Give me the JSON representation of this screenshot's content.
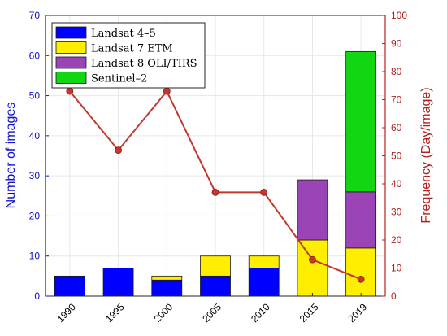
{
  "chart_data": {
    "type": "bar",
    "categories": [
      "1990",
      "1995",
      "2000",
      "2005",
      "2010",
      "2015",
      "2019"
    ],
    "series": [
      {
        "name": "Landsat 4–5",
        "values": [
          5,
          7,
          4,
          5,
          7,
          0,
          0
        ]
      },
      {
        "name": "Landsat 7 ETM",
        "values": [
          0,
          0,
          1,
          5,
          3,
          14,
          12
        ]
      },
      {
        "name": "Landsat 8 OLI/TIRS",
        "values": [
          0,
          0,
          0,
          0,
          0,
          15,
          14
        ]
      },
      {
        "name": "Sentinel–2",
        "values": [
          0,
          0,
          0,
          0,
          0,
          0,
          35
        ]
      }
    ],
    "line": {
      "axis": "right",
      "values": [
        73,
        52,
        73,
        37,
        37,
        13,
        6
      ]
    },
    "ylabel": "Number of images",
    "y2label": "Frequency (Day/image)",
    "ylim": [
      0,
      70
    ],
    "y2lim": [
      0,
      100
    ],
    "yticks": [
      0,
      10,
      20,
      30,
      40,
      50,
      60,
      70
    ],
    "y2ticks": [
      0,
      10,
      20,
      30,
      40,
      50,
      60,
      70,
      80,
      90,
      100
    ],
    "legend_position": "top-left",
    "grid": true,
    "colors": {
      "series": [
        "#0000ff",
        "#ffee00",
        "#9b44b6",
        "#12d612"
      ],
      "line": "#c0392b",
      "left_axis": "#1010d0",
      "right_axis": "#b22222"
    }
  }
}
